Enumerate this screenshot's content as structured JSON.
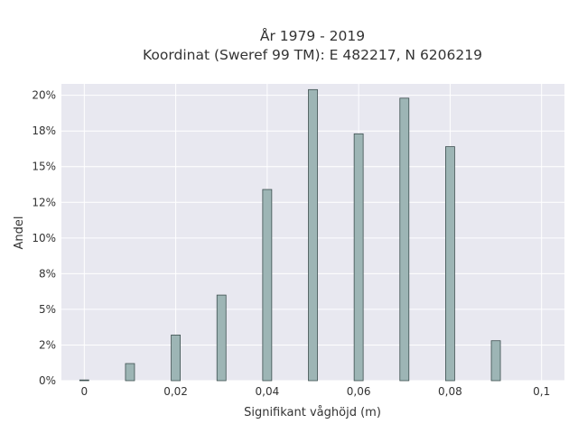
{
  "chart_data": {
    "type": "bar",
    "title_lines": [
      "År 1979 - 2019",
      "Koordinat (Sweref 99 TM): E 482217, N 6206219"
    ],
    "xlabel": "Signifikant våghöjd (m)",
    "ylabel": "Andel",
    "x": [
      0.0,
      0.01,
      0.02,
      0.03,
      0.04,
      0.05,
      0.06,
      0.07,
      0.08,
      0.09
    ],
    "values": [
      0.05,
      1.2,
      3.2,
      6.0,
      13.4,
      20.4,
      17.3,
      19.8,
      16.4,
      2.8
    ],
    "y_unit": "%",
    "xlim": [
      -0.005,
      0.105
    ],
    "ylim": [
      0,
      20.8
    ],
    "x_ticks": [
      0,
      0.02,
      0.04,
      0.06,
      0.08,
      0.1
    ],
    "x_tick_labels": [
      "0",
      "0,02",
      "0,04",
      "0,06",
      "0,08",
      "0,1"
    ],
    "y_ticks": [
      0,
      2.5,
      5,
      7.5,
      10,
      12.5,
      15,
      17.5,
      20
    ],
    "y_tick_labels": [
      "0%",
      "2%",
      "5%",
      "8%",
      "10%",
      "12%",
      "15%",
      "18%",
      "20%"
    ],
    "grid": true,
    "colors": {
      "bar_fill": "#9db5b5",
      "bar_stroke": "#3d4f4f",
      "plot_bg": "#e8e8f0",
      "grid": "#ffffff"
    }
  }
}
